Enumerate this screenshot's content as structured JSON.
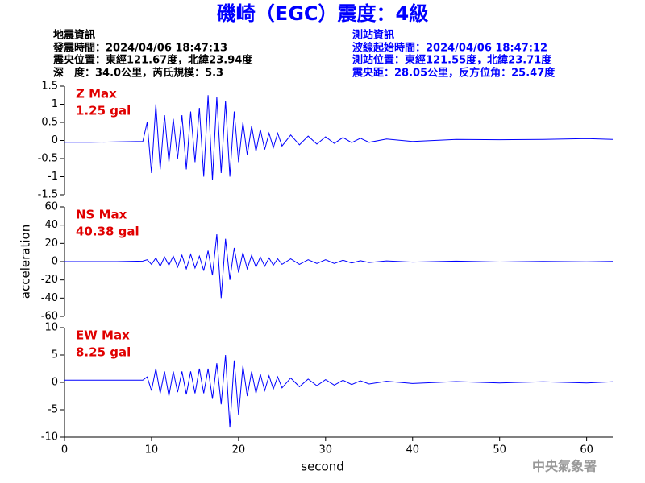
{
  "header": {
    "title": "磯崎（EGC）震度：4級",
    "left": [
      "地震資訊",
      "發震時間：2024/04/06 18:47:13",
      "震央位置：東經121.67度，北緯23.94度",
      "深　度：34.0公里，芮氏規模：5.3"
    ],
    "right": [
      "測站資訊",
      "波線起始時間：2024/04/06 18:47:12",
      "測站位置：東經121.55度，北緯23.71度",
      "震央距：28.05公里，反方位角：25.47度"
    ]
  },
  "footer": "中央氣象署",
  "chart_data": [
    {
      "type": "line",
      "annotation": [
        "Z Max",
        "1.25 gal"
      ],
      "color": "#0000ff",
      "xlim": [
        0,
        63
      ],
      "ylim": [
        -1.5,
        1.5
      ],
      "yticks": [
        1.5,
        1,
        0.5,
        0,
        -0.5,
        -1,
        -1.5
      ],
      "x": [
        0,
        3,
        6,
        9,
        9.5,
        10,
        10.5,
        11,
        11.5,
        12,
        12.5,
        13,
        13.5,
        14,
        14.5,
        15,
        15.5,
        16,
        16.5,
        17,
        17.5,
        18,
        18.5,
        19,
        19.5,
        20,
        20.5,
        21,
        21.5,
        22,
        22.5,
        23,
        23.5,
        24,
        24.5,
        25,
        26,
        27,
        28,
        29,
        30,
        31,
        32,
        33,
        34,
        35,
        37,
        40,
        45,
        50,
        55,
        60,
        63
      ],
      "values": [
        -0.05,
        -0.05,
        -0.04,
        -0.03,
        0.5,
        -0.9,
        1.0,
        -0.8,
        0.7,
        -0.6,
        0.6,
        -0.5,
        0.7,
        -0.8,
        0.8,
        -0.6,
        0.9,
        -1.0,
        1.25,
        -1.1,
        1.2,
        -0.9,
        1.1,
        -1.0,
        0.8,
        -0.6,
        0.5,
        -0.4,
        0.4,
        -0.3,
        0.3,
        -0.25,
        0.2,
        -0.2,
        0.2,
        -0.15,
        0.15,
        -0.12,
        0.12,
        -0.1,
        0.1,
        -0.08,
        0.08,
        -0.06,
        0.06,
        -0.05,
        0.04,
        -0.03,
        0.03,
        0.02,
        0.03,
        0.05,
        0.03
      ]
    },
    {
      "type": "line",
      "annotation": [
        "NS Max",
        "40.38 gal"
      ],
      "ylabel": "acceleration",
      "color": "#0000ff",
      "xlim": [
        0,
        63
      ],
      "ylim": [
        -60,
        60
      ],
      "yticks": [
        60,
        40,
        20,
        0,
        -20,
        -40,
        -60
      ],
      "x": [
        0,
        3,
        6,
        9,
        9.5,
        10,
        10.5,
        11,
        11.5,
        12,
        12.5,
        13,
        13.5,
        14,
        14.5,
        15,
        15.5,
        16,
        16.5,
        17,
        17.5,
        18,
        18.5,
        19,
        19.5,
        20,
        20.5,
        21,
        21.5,
        22,
        22.5,
        23,
        23.5,
        24,
        24.5,
        25,
        26,
        27,
        28,
        29,
        30,
        31,
        32,
        33,
        34,
        35,
        37,
        40,
        45,
        50,
        55,
        60,
        63
      ],
      "values": [
        0,
        0,
        0,
        0.5,
        2,
        -3,
        4,
        -5,
        5,
        -4,
        6,
        -6,
        7,
        -8,
        8,
        -7,
        6,
        -10,
        12,
        -15,
        30,
        -40,
        25,
        -20,
        15,
        -12,
        10,
        -8,
        7,
        -6,
        5,
        -5,
        4,
        -4,
        3,
        -3,
        3,
        -3,
        2,
        -2,
        2,
        -2,
        1.5,
        -1.5,
        1,
        -1,
        0.8,
        -0.5,
        0.5,
        -0.4,
        0.3,
        -0.3,
        0.2
      ]
    },
    {
      "type": "line",
      "annotation": [
        "EW Max",
        "8.25 gal"
      ],
      "xlabel": "second",
      "color": "#0000ff",
      "xlim": [
        0,
        63
      ],
      "ylim": [
        -10,
        10
      ],
      "yticks": [
        10,
        5,
        0,
        -5,
        -10
      ],
      "xticks": [
        0,
        10,
        20,
        30,
        40,
        50,
        60
      ],
      "x": [
        0,
        3,
        6,
        9,
        9.5,
        10,
        10.5,
        11,
        11.5,
        12,
        12.5,
        13,
        13.5,
        14,
        14.5,
        15,
        15.5,
        16,
        16.5,
        17,
        17.5,
        18,
        18.5,
        19,
        19.5,
        20,
        20.5,
        21,
        21.5,
        22,
        22.5,
        23,
        23.5,
        24,
        24.5,
        25,
        26,
        27,
        28,
        29,
        30,
        31,
        32,
        33,
        34,
        35,
        37,
        40,
        45,
        50,
        55,
        60,
        63
      ],
      "values": [
        0.4,
        0.4,
        0.4,
        0.4,
        1,
        -1.5,
        2.5,
        -2,
        2,
        -2.5,
        2,
        -1.8,
        2,
        -2.2,
        2,
        -2,
        2.5,
        -2,
        2.5,
        -3,
        3.5,
        -4,
        5,
        -8.25,
        4,
        -6,
        3,
        -2.5,
        2,
        -2,
        1.5,
        -1.5,
        1.2,
        -1.2,
        1,
        -1,
        0.8,
        -0.8,
        0.6,
        -0.6,
        0.5,
        -0.5,
        0.4,
        -0.4,
        0.3,
        -0.3,
        0.2,
        -0.2,
        0.15,
        -0.1,
        0.1,
        -0.1,
        0.1
      ]
    }
  ]
}
